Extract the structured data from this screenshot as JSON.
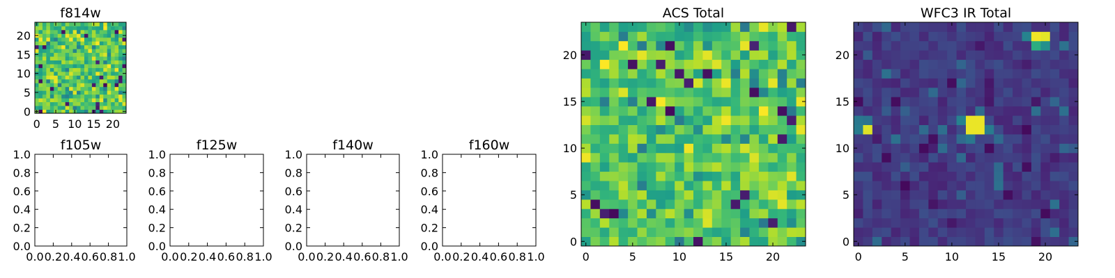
{
  "chart_data": [
    {
      "id": "f814w",
      "type": "heatmap",
      "title": "f814w",
      "grid_size": [
        24,
        24
      ],
      "xlim": [
        -0.5,
        23.5
      ],
      "ylim": [
        -0.5,
        23.5
      ],
      "xticks": [
        0,
        5,
        10,
        15,
        20
      ],
      "yticks": [
        0,
        5,
        10,
        15,
        20
      ],
      "colormap": "viridis",
      "texture": "mostly green-yellow pixels with scattered dark purple and bright yellow pixels",
      "values": []
    },
    {
      "id": "f105w",
      "type": "empty",
      "title": "f105w",
      "xlim": [
        0,
        1
      ],
      "ylim": [
        0,
        1
      ],
      "xticks": [
        "0.0",
        "0.2",
        "0.4",
        "0.6",
        "0.8",
        "1.0"
      ],
      "yticks": [
        "0.0",
        "0.2",
        "0.4",
        "0.6",
        "0.8",
        "1.0"
      ]
    },
    {
      "id": "f125w",
      "type": "empty",
      "title": "f125w",
      "xlim": [
        0,
        1
      ],
      "ylim": [
        0,
        1
      ],
      "xticks": [
        "0.0",
        "0.2",
        "0.4",
        "0.6",
        "0.8",
        "1.0"
      ],
      "yticks": [
        "0.0",
        "0.2",
        "0.4",
        "0.6",
        "0.8",
        "1.0"
      ]
    },
    {
      "id": "f140w",
      "type": "empty",
      "title": "f140w",
      "xlim": [
        0,
        1
      ],
      "ylim": [
        0,
        1
      ],
      "xticks": [
        "0.0",
        "0.2",
        "0.4",
        "0.6",
        "0.8",
        "1.0"
      ],
      "yticks": [
        "0.0",
        "0.2",
        "0.4",
        "0.6",
        "0.8",
        "1.0"
      ]
    },
    {
      "id": "f160w",
      "type": "empty",
      "title": "f160w",
      "xlim": [
        0,
        1
      ],
      "ylim": [
        0,
        1
      ],
      "xticks": [
        "0.0",
        "0.2",
        "0.4",
        "0.6",
        "0.8",
        "1.0"
      ],
      "yticks": [
        "0.0",
        "0.2",
        "0.4",
        "0.6",
        "0.8",
        "1.0"
      ]
    },
    {
      "id": "acs-total",
      "type": "heatmap",
      "title": "ACS Total",
      "grid_size": [
        24,
        24
      ],
      "xlim": [
        -0.5,
        23.5
      ],
      "ylim": [
        -0.5,
        23.5
      ],
      "xticks": [
        0,
        5,
        10,
        15,
        20
      ],
      "yticks": [
        0,
        5,
        10,
        15,
        20
      ],
      "colormap": "viridis",
      "texture": "mostly green-yellow pixels with scattered dark purple and bright yellow pixels",
      "values": []
    },
    {
      "id": "wfc3-ir-total",
      "type": "heatmap",
      "title": "WFC3 IR Total",
      "grid_size": [
        24,
        24
      ],
      "xlim": [
        -0.5,
        23.5
      ],
      "ylim": [
        -0.5,
        23.5
      ],
      "xticks": [
        0,
        5,
        10,
        15,
        20
      ],
      "yticks": [
        0,
        5,
        10,
        15,
        20
      ],
      "colormap": "viridis",
      "texture": "mostly dark blue-purple background with a bright yellow source near x=12-13, y=12-13, another near x=19-20, y=22 and a small one near x=1, y=12",
      "values": []
    }
  ]
}
